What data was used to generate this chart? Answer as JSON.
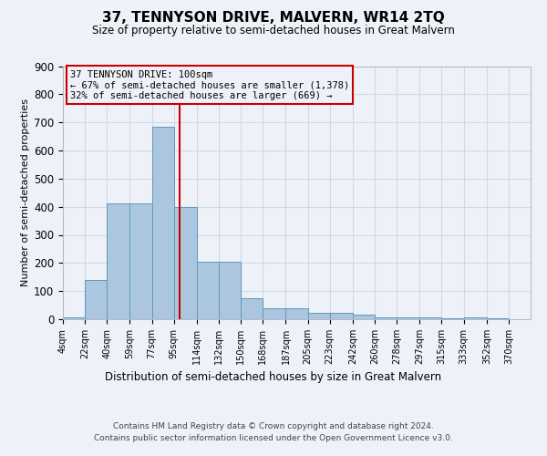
{
  "title": "37, TENNYSON DRIVE, MALVERN, WR14 2TQ",
  "subtitle": "Size of property relative to semi-detached houses in Great Malvern",
  "xlabel": "Distribution of semi-detached houses by size in Great Malvern",
  "ylabel": "Number of semi-detached properties",
  "footer_line1": "Contains HM Land Registry data © Crown copyright and database right 2024.",
  "footer_line2": "Contains public sector information licensed under the Open Government Licence v3.0.",
  "annotation_title": "37 TENNYSON DRIVE: 100sqm",
  "annotation_line1": "← 67% of semi-detached houses are smaller (1,378)",
  "annotation_line2": "32% of semi-detached houses are larger (669) →",
  "property_size": 100,
  "bar_left_edges": [
    4,
    22,
    40,
    59,
    77,
    95,
    114,
    132,
    150,
    168,
    187,
    205,
    223,
    242,
    260,
    278,
    297,
    315,
    333,
    352
  ],
  "bar_heights": [
    5,
    141,
    413,
    413,
    685,
    400,
    205,
    205,
    75,
    40,
    40,
    22,
    22,
    15,
    8,
    8,
    8,
    3,
    8,
    3
  ],
  "bar_widths": [
    18,
    18,
    19,
    18,
    18,
    19,
    18,
    18,
    18,
    19,
    18,
    18,
    19,
    18,
    18,
    19,
    18,
    18,
    19,
    18
  ],
  "tick_labels": [
    "4sqm",
    "22sqm",
    "40sqm",
    "59sqm",
    "77sqm",
    "95sqm",
    "114sqm",
    "132sqm",
    "150sqm",
    "168sqm",
    "187sqm",
    "205sqm",
    "223sqm",
    "242sqm",
    "260sqm",
    "278sqm",
    "297sqm",
    "315sqm",
    "333sqm",
    "352sqm",
    "370sqm"
  ],
  "bar_color": "#adc6e0",
  "bar_edge_color": "#5a9abe",
  "grid_color": "#d0d8e8",
  "annotation_box_color": "#cc0000",
  "vline_color": "#cc0000",
  "bg_color": "#eef2f8",
  "ylim": [
    0,
    900
  ],
  "yticks": [
    0,
    100,
    200,
    300,
    400,
    500,
    600,
    700,
    800,
    900
  ]
}
